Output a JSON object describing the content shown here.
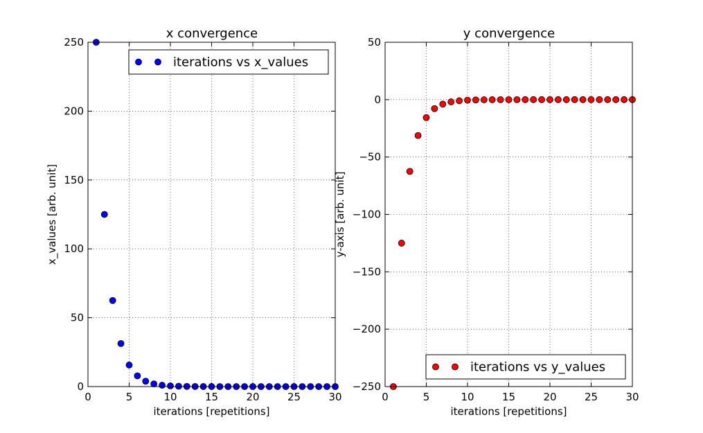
{
  "chart_data": [
    {
      "type": "scatter",
      "title": "x convergence",
      "xlabel": "iterations [repetitions]",
      "ylabel": "x_values [arb. unit]",
      "xlim": [
        0,
        30
      ],
      "ylim": [
        0,
        250
      ],
      "xticks": [
        0,
        5,
        10,
        15,
        20,
        25,
        30
      ],
      "yticks": [
        0,
        50,
        100,
        150,
        200,
        250
      ],
      "grid": true,
      "legend_position": "upper-right",
      "series": [
        {
          "name": "iterations vs x_values",
          "color": "#0000ff",
          "x": [
            1,
            2,
            3,
            4,
            5,
            6,
            7,
            8,
            9,
            10,
            11,
            12,
            13,
            14,
            15,
            16,
            17,
            18,
            19,
            20,
            21,
            22,
            23,
            24,
            25,
            26,
            27,
            28,
            29,
            30
          ],
          "y": [
            250,
            125,
            62.5,
            31.25,
            15.63,
            7.81,
            3.91,
            1.95,
            0.98,
            0.49,
            0.24,
            0.12,
            0.06,
            0.03,
            0.02,
            0.01,
            0,
            0,
            0,
            0,
            0,
            0,
            0,
            0,
            0,
            0,
            0,
            0,
            0,
            0
          ]
        }
      ]
    },
    {
      "type": "scatter",
      "title": "y convergence",
      "xlabel": "iterations [repetitions]",
      "ylabel": "y-axis [arb. unit]",
      "xlim": [
        0,
        30
      ],
      "ylim": [
        -250,
        50
      ],
      "xticks": [
        0,
        5,
        10,
        15,
        20,
        25,
        30
      ],
      "yticks": [
        50,
        0,
        -50,
        -100,
        -150,
        -200,
        -250
      ],
      "grid": true,
      "legend_position": "lower-right",
      "series": [
        {
          "name": "iterations vs y_values",
          "color": "#ff0000",
          "x": [
            1,
            2,
            3,
            4,
            5,
            6,
            7,
            8,
            9,
            10,
            11,
            12,
            13,
            14,
            15,
            16,
            17,
            18,
            19,
            20,
            21,
            22,
            23,
            24,
            25,
            26,
            27,
            28,
            29,
            30
          ],
          "y": [
            -250,
            -125,
            -62.5,
            -31.25,
            -15.63,
            -7.81,
            -3.91,
            -1.95,
            -0.98,
            -0.49,
            -0.24,
            -0.12,
            -0.06,
            -0.03,
            -0.02,
            -0.01,
            0,
            0,
            0,
            0,
            0,
            0,
            0,
            0,
            0,
            0,
            0,
            0,
            0,
            0
          ]
        }
      ]
    }
  ]
}
